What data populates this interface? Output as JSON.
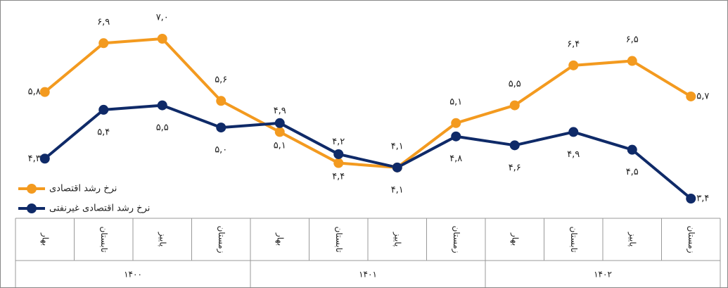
{
  "chart_data": {
    "type": "line",
    "categories": [
      "بهار",
      "تابستان",
      "پاییز",
      "زمستان",
      "بهار",
      "تابستان",
      "پاییز",
      "زمستان",
      "بهار",
      "تابستان",
      "پاییز",
      "زمستان"
    ],
    "groups": [
      "۱۴۰۰",
      "۱۴۰۱",
      "۱۴۰۲"
    ],
    "series": [
      {
        "name": "نرخ رشد اقتصادی",
        "color": "#f39a1f",
        "values": [
          5.8,
          6.9,
          7.0,
          5.6,
          4.9,
          4.2,
          4.1,
          5.1,
          5.5,
          6.4,
          6.5,
          5.7
        ],
        "value_labels": [
          "۵,۸",
          "۶,۹",
          "۷,۰",
          "۵,۶",
          "۴,۹",
          "۴,۲",
          "۴,۱",
          "۵,۱",
          "۵,۵",
          "۶,۴",
          "۶,۵",
          "۵,۷"
        ]
      },
      {
        "name": "نرخ رشد اقتصادی غیرنفتی",
        "color": "#0f2a68",
        "values": [
          4.3,
          5.4,
          5.5,
          5.0,
          5.1,
          4.4,
          4.1,
          4.8,
          4.6,
          4.9,
          4.5,
          3.4
        ],
        "value_labels": [
          "۴,۳",
          "۵,۴",
          "۵,۵",
          "۵,۰",
          "۵,۱",
          "۴,۴",
          "۴,۱",
          "۴,۸",
          "۴,۶",
          "۴,۹",
          "۴,۵",
          "۳,۴"
        ]
      }
    ],
    "legend": "bottom-left"
  }
}
